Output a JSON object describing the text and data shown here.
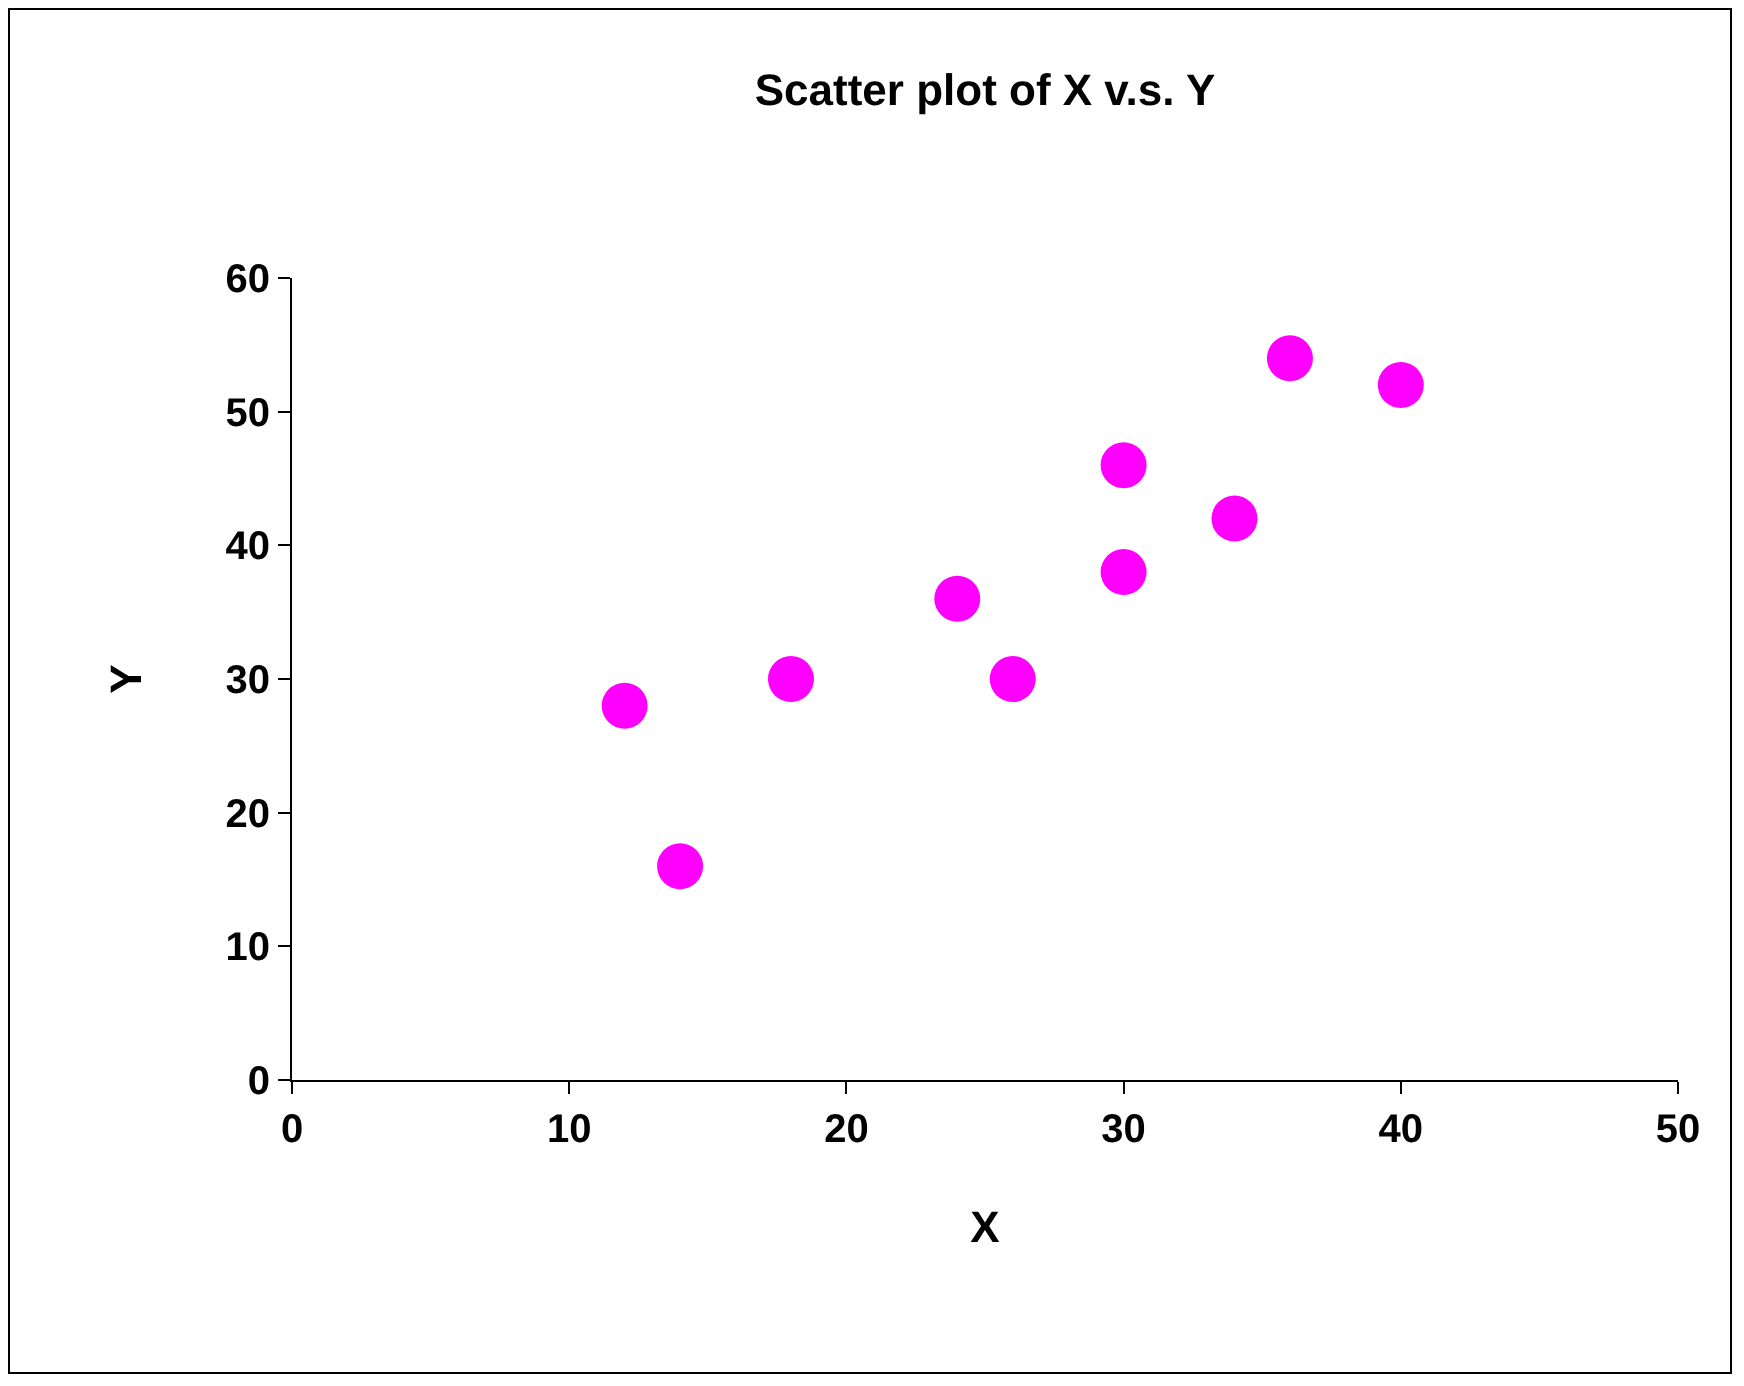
{
  "chart_data": {
    "type": "scatter",
    "title": "Scatter plot of X v.s. Y",
    "xlabel": "X",
    "ylabel": "Y",
    "x": [
      12,
      14,
      18,
      24,
      26,
      30,
      30,
      34,
      36,
      40
    ],
    "series": [
      {
        "color": "#ff00ff",
        "values": [
          28,
          16,
          30,
          36,
          30,
          46,
          38,
          42,
          54,
          52
        ]
      }
    ],
    "xlim": [
      0,
      50
    ],
    "xticks": [
      0,
      10,
      20,
      30,
      40,
      50
    ],
    "ylim": [
      0,
      60
    ],
    "yticks": [
      0,
      10,
      20,
      30,
      40,
      50,
      60
    ],
    "grid": false,
    "legend": false,
    "marker": "circle"
  }
}
